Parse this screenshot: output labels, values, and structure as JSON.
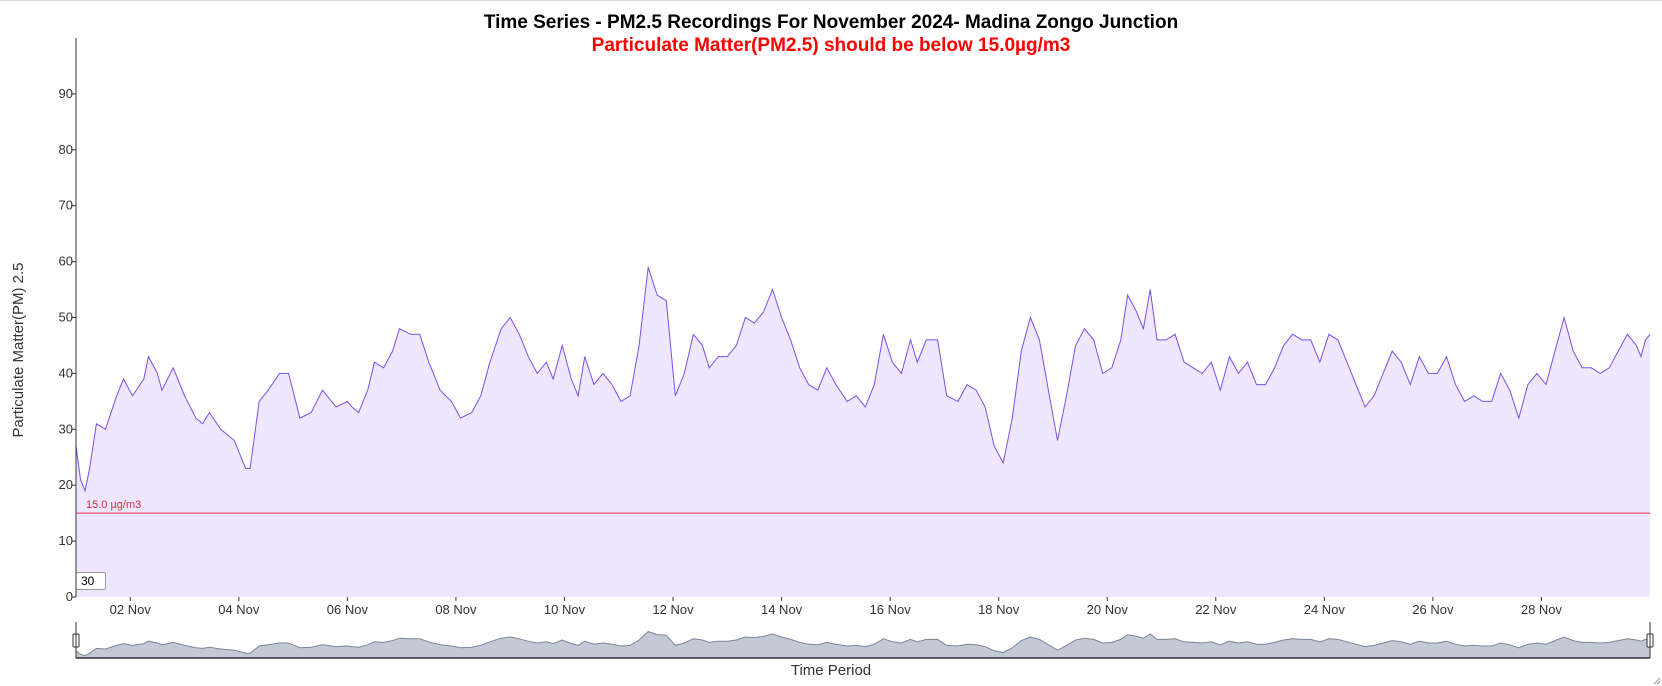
{
  "colors": {
    "line": "#7b4fe8",
    "fill": "#efe7ff",
    "threshold": "#e8283c",
    "subtitle": "#ff0000",
    "navigator_fill": "#c4c9d6",
    "navigator_line": "#7c8599"
  },
  "rolling_window": "30",
  "chart_data": {
    "type": "area",
    "title": "Time Series - PM2.5 Recordings For November 2024- Madina Zongo Junction",
    "subtitle": "Particulate Matter(PM2.5) should be below 15.0µg/m3",
    "xlabel": "Time Period",
    "ylabel": "Particulate Matter(PM) 2.5",
    "ylim": [
      0,
      100
    ],
    "yticks": [
      0,
      10,
      20,
      30,
      40,
      50,
      60,
      70,
      80,
      90
    ],
    "xlim": [
      "2024-11-01T00:00",
      "2024-11-30T00:00"
    ],
    "xticks": [
      {
        "date": "2024-11-02",
        "label": "02 Nov"
      },
      {
        "date": "2024-11-04",
        "label": "04 Nov"
      },
      {
        "date": "2024-11-06",
        "label": "06 Nov"
      },
      {
        "date": "2024-11-08",
        "label": "08 Nov"
      },
      {
        "date": "2024-11-10",
        "label": "10 Nov"
      },
      {
        "date": "2024-11-12",
        "label": "12 Nov"
      },
      {
        "date": "2024-11-14",
        "label": "14 Nov"
      },
      {
        "date": "2024-11-16",
        "label": "16 Nov"
      },
      {
        "date": "2024-11-18",
        "label": "18 Nov"
      },
      {
        "date": "2024-11-20",
        "label": "20 Nov"
      },
      {
        "date": "2024-11-22",
        "label": "22 Nov"
      },
      {
        "date": "2024-11-24",
        "label": "24 Nov"
      },
      {
        "date": "2024-11-26",
        "label": "26 Nov"
      },
      {
        "date": "2024-11-28",
        "label": "28 Nov"
      }
    ],
    "threshold": {
      "value": 15.0,
      "label": "15.0 µg/m3"
    },
    "grid": false,
    "series": [
      {
        "points": [
          [
            "2024-11-01T00:00",
            27
          ],
          [
            "2024-11-01T02:00",
            21
          ],
          [
            "2024-11-01T04:00",
            19
          ],
          [
            "2024-11-01T06:00",
            23
          ],
          [
            "2024-11-01T09:00",
            31
          ],
          [
            "2024-11-01T13:00",
            30
          ],
          [
            "2024-11-01T18:00",
            36
          ],
          [
            "2024-11-01T21:00",
            39
          ],
          [
            "2024-11-02T01:00",
            36
          ],
          [
            "2024-11-02T06:00",
            39
          ],
          [
            "2024-11-02T08:00",
            43
          ],
          [
            "2024-11-02T12:00",
            40
          ],
          [
            "2024-11-02T14:00",
            37
          ],
          [
            "2024-11-02T19:00",
            41
          ],
          [
            "2024-11-03T00:00",
            36
          ],
          [
            "2024-11-03T05:00",
            32
          ],
          [
            "2024-11-03T08:00",
            31
          ],
          [
            "2024-11-03T11:00",
            33
          ],
          [
            "2024-11-03T16:00",
            30
          ],
          [
            "2024-11-03T22:00",
            28
          ],
          [
            "2024-11-04T03:00",
            23
          ],
          [
            "2024-11-04T05:00",
            23
          ],
          [
            "2024-11-04T09:00",
            35
          ],
          [
            "2024-11-04T13:00",
            37
          ],
          [
            "2024-11-04T18:00",
            40
          ],
          [
            "2024-11-04T22:00",
            40
          ],
          [
            "2024-11-05T03:00",
            32
          ],
          [
            "2024-11-05T08:00",
            33
          ],
          [
            "2024-11-05T13:00",
            37
          ],
          [
            "2024-11-05T19:00",
            34
          ],
          [
            "2024-11-06T00:00",
            35
          ],
          [
            "2024-11-06T02:00",
            34
          ],
          [
            "2024-11-06T05:00",
            33
          ],
          [
            "2024-11-06T09:00",
            37
          ],
          [
            "2024-11-06T12:00",
            42
          ],
          [
            "2024-11-06T16:00",
            41
          ],
          [
            "2024-11-06T20:00",
            44
          ],
          [
            "2024-11-06T23:00",
            48
          ],
          [
            "2024-11-07T04:00",
            47
          ],
          [
            "2024-11-07T08:00",
            47
          ],
          [
            "2024-11-07T12:00",
            42
          ],
          [
            "2024-11-07T17:00",
            37
          ],
          [
            "2024-11-07T22:00",
            35
          ],
          [
            "2024-11-08T02:00",
            32
          ],
          [
            "2024-11-08T07:00",
            33
          ],
          [
            "2024-11-08T11:00",
            36
          ],
          [
            "2024-11-08T15:00",
            42
          ],
          [
            "2024-11-08T20:00",
            48
          ],
          [
            "2024-11-09T00:00",
            50
          ],
          [
            "2024-11-09T04:00",
            47
          ],
          [
            "2024-11-09T08:00",
            43
          ],
          [
            "2024-11-09T12:00",
            40
          ],
          [
            "2024-11-09T16:00",
            42
          ],
          [
            "2024-11-09T19:00",
            39
          ],
          [
            "2024-11-09T23:00",
            45
          ],
          [
            "2024-11-10T03:00",
            39
          ],
          [
            "2024-11-10T06:00",
            36
          ],
          [
            "2024-11-10T09:00",
            43
          ],
          [
            "2024-11-10T13:00",
            38
          ],
          [
            "2024-11-10T17:00",
            40
          ],
          [
            "2024-11-10T21:00",
            38
          ],
          [
            "2024-11-11T01:00",
            35
          ],
          [
            "2024-11-11T05:00",
            36
          ],
          [
            "2024-11-11T09:00",
            45
          ],
          [
            "2024-11-11T13:00",
            59
          ],
          [
            "2024-11-11T17:00",
            54
          ],
          [
            "2024-11-11T21:00",
            53
          ],
          [
            "2024-11-12T01:00",
            36
          ],
          [
            "2024-11-12T05:00",
            40
          ],
          [
            "2024-11-12T09:00",
            47
          ],
          [
            "2024-11-12T13:00",
            45
          ],
          [
            "2024-11-12T16:00",
            41
          ],
          [
            "2024-11-12T20:00",
            43
          ],
          [
            "2024-11-13T00:00",
            43
          ],
          [
            "2024-11-13T04:00",
            45
          ],
          [
            "2024-11-13T08:00",
            50
          ],
          [
            "2024-11-13T12:00",
            49
          ],
          [
            "2024-11-13T16:00",
            51
          ],
          [
            "2024-11-13T20:00",
            55
          ],
          [
            "2024-11-14T00:00",
            50
          ],
          [
            "2024-11-14T04:00",
            46
          ],
          [
            "2024-11-14T08:00",
            41
          ],
          [
            "2024-11-14T12:00",
            38
          ],
          [
            "2024-11-14T16:00",
            37
          ],
          [
            "2024-11-14T20:00",
            41
          ],
          [
            "2024-11-15T00:00",
            38
          ],
          [
            "2024-11-15T05:00",
            35
          ],
          [
            "2024-11-15T09:00",
            36
          ],
          [
            "2024-11-15T13:00",
            34
          ],
          [
            "2024-11-15T17:00",
            38
          ],
          [
            "2024-11-15T21:00",
            47
          ],
          [
            "2024-11-16T01:00",
            42
          ],
          [
            "2024-11-16T05:00",
            40
          ],
          [
            "2024-11-16T09:00",
            46
          ],
          [
            "2024-11-16T12:00",
            42
          ],
          [
            "2024-11-16T16:00",
            46
          ],
          [
            "2024-11-16T21:00",
            46
          ],
          [
            "2024-11-17T01:00",
            36
          ],
          [
            "2024-11-17T06:00",
            35
          ],
          [
            "2024-11-17T10:00",
            38
          ],
          [
            "2024-11-17T14:00",
            37
          ],
          [
            "2024-11-17T18:00",
            34
          ],
          [
            "2024-11-17T22:00",
            27
          ],
          [
            "2024-11-18T02:00",
            24
          ],
          [
            "2024-11-18T06:00",
            32
          ],
          [
            "2024-11-18T10:00",
            44
          ],
          [
            "2024-11-18T14:00",
            50
          ],
          [
            "2024-11-18T18:00",
            46
          ],
          [
            "2024-11-18T22:00",
            37
          ],
          [
            "2024-11-19T02:00",
            28
          ],
          [
            "2024-11-19T06:00",
            36
          ],
          [
            "2024-11-19T10:00",
            45
          ],
          [
            "2024-11-19T14:00",
            48
          ],
          [
            "2024-11-19T18:00",
            46
          ],
          [
            "2024-11-19T22:00",
            40
          ],
          [
            "2024-11-20T02:00",
            41
          ],
          [
            "2024-11-20T06:00",
            46
          ],
          [
            "2024-11-20T09:00",
            54
          ],
          [
            "2024-11-20T13:00",
            51
          ],
          [
            "2024-11-20T16:00",
            48
          ],
          [
            "2024-11-20T19:00",
            55
          ],
          [
            "2024-11-20T22:00",
            46
          ],
          [
            "2024-11-21T02:00",
            46
          ],
          [
            "2024-11-21T06:00",
            47
          ],
          [
            "2024-11-21T10:00",
            42
          ],
          [
            "2024-11-21T14:00",
            41
          ],
          [
            "2024-11-21T18:00",
            40
          ],
          [
            "2024-11-21T22:00",
            42
          ],
          [
            "2024-11-22T02:00",
            37
          ],
          [
            "2024-11-22T06:00",
            43
          ],
          [
            "2024-11-22T10:00",
            40
          ],
          [
            "2024-11-22T14:00",
            42
          ],
          [
            "2024-11-22T18:00",
            38
          ],
          [
            "2024-11-22T22:00",
            38
          ],
          [
            "2024-11-23T02:00",
            41
          ],
          [
            "2024-11-23T06:00",
            45
          ],
          [
            "2024-11-23T10:00",
            47
          ],
          [
            "2024-11-23T14:00",
            46
          ],
          [
            "2024-11-23T18:00",
            46
          ],
          [
            "2024-11-23T22:00",
            42
          ],
          [
            "2024-11-24T02:00",
            47
          ],
          [
            "2024-11-24T06:00",
            46
          ],
          [
            "2024-11-24T10:00",
            42
          ],
          [
            "2024-11-24T14:00",
            38
          ],
          [
            "2024-11-24T18:00",
            34
          ],
          [
            "2024-11-24T22:00",
            36
          ],
          [
            "2024-11-25T02:00",
            40
          ],
          [
            "2024-11-25T06:00",
            44
          ],
          [
            "2024-11-25T10:00",
            42
          ],
          [
            "2024-11-25T14:00",
            38
          ],
          [
            "2024-11-25T18:00",
            43
          ],
          [
            "2024-11-25T22:00",
            40
          ],
          [
            "2024-11-26T02:00",
            40
          ],
          [
            "2024-11-26T06:00",
            43
          ],
          [
            "2024-11-26T10:00",
            38
          ],
          [
            "2024-11-26T14:00",
            35
          ],
          [
            "2024-11-26T18:00",
            36
          ],
          [
            "2024-11-26T22:00",
            35
          ],
          [
            "2024-11-27T02:00",
            35
          ],
          [
            "2024-11-27T06:00",
            40
          ],
          [
            "2024-11-27T10:00",
            37
          ],
          [
            "2024-11-27T14:00",
            32
          ],
          [
            "2024-11-27T18:00",
            38
          ],
          [
            "2024-11-27T22:00",
            40
          ],
          [
            "2024-11-28T02:00",
            38
          ],
          [
            "2024-11-28T06:00",
            44
          ],
          [
            "2024-11-28T10:00",
            50
          ],
          [
            "2024-11-28T14:00",
            44
          ],
          [
            "2024-11-28T18:00",
            41
          ],
          [
            "2024-11-28T22:00",
            41
          ],
          [
            "2024-11-29T02:00",
            40
          ],
          [
            "2024-11-29T06:00",
            41
          ],
          [
            "2024-11-29T10:00",
            44
          ],
          [
            "2024-11-29T14:00",
            47
          ],
          [
            "2024-11-29T18:00",
            45
          ],
          [
            "2024-11-29T20:00",
            43
          ],
          [
            "2024-11-29T22:00",
            46
          ],
          [
            "2024-11-30T00:00",
            47
          ]
        ]
      }
    ]
  }
}
